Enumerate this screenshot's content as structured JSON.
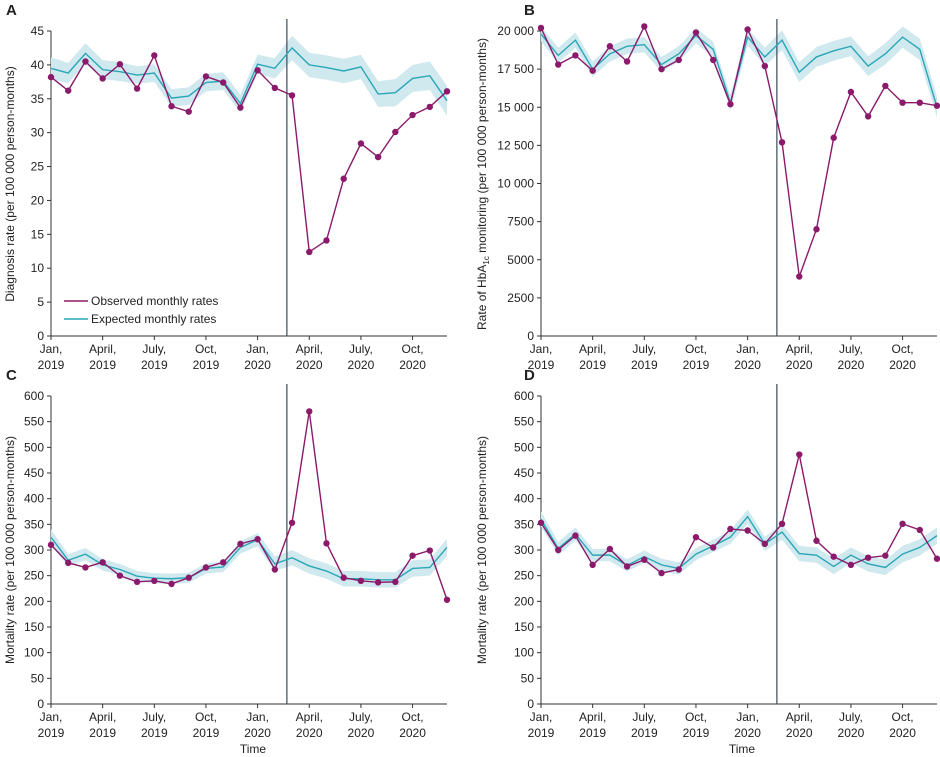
{
  "figure": {
    "x_axis_title": "Time",
    "legend": {
      "observed_label": "Observed monthly rates",
      "expected_label": "Expected monthly rates"
    },
    "colors": {
      "observed": "#8b1a6b",
      "expected": "#2aa6b7",
      "band": "#cfe9ef",
      "vline": "#3b4a5c"
    }
  },
  "chart_data": [
    {
      "panel": "A",
      "type": "line",
      "ylabel": "Diagnosis rate (per 100 000 person-months)",
      "ylim": [
        0,
        45
      ],
      "yticks": [
        0,
        5,
        10,
        15,
        20,
        25,
        30,
        35,
        40,
        45
      ],
      "x_tick_labels": [
        [
          "Jan,",
          "2019"
        ],
        [
          "April,",
          "2019"
        ],
        [
          "July,",
          "2019"
        ],
        [
          "Oct,",
          "2019"
        ],
        [
          "Jan,",
          "2020"
        ],
        [
          "April,",
          "2020"
        ],
        [
          "July,",
          "2020"
        ],
        [
          "Oct,",
          "2020"
        ]
      ],
      "x_tick_months": [
        0,
        3,
        6,
        9,
        12,
        15,
        18,
        21
      ],
      "vline_month": 13.7,
      "months": [
        0,
        1,
        2,
        3,
        4,
        5,
        6,
        7,
        8,
        9,
        10,
        11,
        12,
        13,
        14,
        15,
        16,
        17,
        18,
        19,
        20,
        21,
        22,
        23
      ],
      "series": [
        {
          "name": "Observed monthly rates",
          "values": [
            38.2,
            36.2,
            40.5,
            38.0,
            40.1,
            36.5,
            41.4,
            33.9,
            33.1,
            38.3,
            37.4,
            33.7,
            39.2,
            36.6,
            35.5,
            12.4,
            14.1,
            23.2,
            28.4,
            26.4,
            30.1,
            32.6,
            33.8,
            36.1
          ]
        },
        {
          "name": "Expected monthly rates",
          "values": [
            39.5,
            38.8,
            41.7,
            39.3,
            39.0,
            38.5,
            38.8,
            35.1,
            35.4,
            37.4,
            37.6,
            34.3,
            40.1,
            39.5,
            42.5,
            40.0,
            39.6,
            39.1,
            39.7,
            35.7,
            35.9,
            38.0,
            38.4,
            34.7
          ]
        }
      ],
      "band_halfwidth": [
        1.6,
        1.5,
        1.5,
        1.4,
        1.4,
        1.3,
        1.3,
        1.3,
        1.3,
        1.3,
        1.3,
        1.3,
        1.4,
        1.5,
        1.8,
        1.8,
        1.8,
        1.8,
        1.8,
        1.9,
        2.0,
        2.0,
        2.1,
        2.2
      ]
    },
    {
      "panel": "B",
      "type": "line",
      "ylabel": "Rate of HbA1c monitoring (per 100 000 person-months)",
      "ylim": [
        0,
        20000
      ],
      "yticks": [
        0,
        2500,
        5000,
        7500,
        10000,
        12500,
        15000,
        17500,
        20000
      ],
      "ytick_labels": [
        "0",
        "2500",
        "5000",
        "7500",
        "10 000",
        "12 500",
        "15 000",
        "17 500",
        "20 000"
      ],
      "x_tick_labels": [
        [
          "Jan,",
          "2019"
        ],
        [
          "April,",
          "2019"
        ],
        [
          "July,",
          "2019"
        ],
        [
          "Oct,",
          "2019"
        ],
        [
          "Jan,",
          "2020"
        ],
        [
          "April,",
          "2020"
        ],
        [
          "July,",
          "2020"
        ],
        [
          "Oct,",
          "2020"
        ]
      ],
      "x_tick_months": [
        0,
        3,
        6,
        9,
        12,
        15,
        18,
        21
      ],
      "vline_month": 13.7,
      "months": [
        0,
        1,
        2,
        3,
        4,
        5,
        6,
        7,
        8,
        9,
        10,
        11,
        12,
        13,
        14,
        15,
        16,
        17,
        18,
        19,
        20,
        21,
        22,
        23
      ],
      "series": [
        {
          "name": "Observed monthly rates",
          "values": [
            20200,
            17800,
            18400,
            17400,
            19000,
            18000,
            20300,
            17500,
            18100,
            19900,
            18100,
            15200,
            20100,
            17700,
            12700,
            3900,
            7000,
            13000,
            16000,
            14400,
            16400,
            15300,
            15300,
            15100
          ]
        },
        {
          "name": "Expected monthly rates",
          "values": [
            19800,
            18400,
            19400,
            17500,
            18500,
            19000,
            19100,
            17800,
            18500,
            19700,
            18800,
            15300,
            19600,
            18300,
            19400,
            17300,
            18300,
            18700,
            19000,
            17700,
            18500,
            19600,
            18800,
            15000
          ]
        }
      ],
      "band_halfwidth": [
        500,
        500,
        500,
        500,
        500,
        500,
        500,
        500,
        500,
        500,
        500,
        500,
        550,
        600,
        650,
        650,
        650,
        650,
        650,
        650,
        700,
        700,
        700,
        700
      ]
    },
    {
      "panel": "C",
      "type": "line",
      "ylabel": "Mortality rate (per 100 000 person-months)",
      "ylim": [
        0,
        600
      ],
      "yticks": [
        0,
        50,
        100,
        150,
        200,
        250,
        300,
        350,
        400,
        450,
        500,
        550,
        600
      ],
      "x_tick_labels": [
        [
          "Jan,",
          "2019"
        ],
        [
          "April,",
          "2019"
        ],
        [
          "July,",
          "2019"
        ],
        [
          "Oct,",
          "2019"
        ],
        [
          "Jan,",
          "2020"
        ],
        [
          "April,",
          "2020"
        ],
        [
          "July,",
          "2020"
        ],
        [
          "Oct,",
          "2020"
        ]
      ],
      "x_tick_months": [
        0,
        3,
        6,
        9,
        12,
        15,
        18,
        21
      ],
      "vline_month": 13.7,
      "months": [
        0,
        1,
        2,
        3,
        4,
        5,
        6,
        7,
        8,
        9,
        10,
        11,
        12,
        13,
        14,
        15,
        16,
        17,
        18,
        19,
        20,
        21,
        22,
        23
      ],
      "series": [
        {
          "name": "Observed monthly rates",
          "values": [
            310,
            275,
            266,
            276,
            250,
            238,
            240,
            234,
            246,
            266,
            276,
            312,
            321,
            262,
            353,
            570,
            313,
            246,
            240,
            237,
            238,
            289,
            299,
            203
          ]
        },
        {
          "name": "Expected monthly rates",
          "values": [
            325,
            280,
            292,
            271,
            262,
            249,
            245,
            244,
            246,
            264,
            267,
            305,
            320,
            273,
            285,
            269,
            259,
            244,
            244,
            242,
            242,
            264,
            266,
            305
          ]
        }
      ],
      "band_halfwidth": [
        15,
        12,
        12,
        11,
        11,
        10,
        10,
        10,
        10,
        10,
        10,
        12,
        13,
        14,
        15,
        15,
        15,
        15,
        15,
        15,
        15,
        16,
        16,
        17
      ]
    },
    {
      "panel": "D",
      "type": "line",
      "ylabel": "Mortality rate (per 100 000 person-months)",
      "ylim": [
        0,
        600
      ],
      "yticks": [
        0,
        50,
        100,
        150,
        200,
        250,
        300,
        350,
        400,
        450,
        500,
        550,
        600
      ],
      "x_tick_labels": [
        [
          "Jan,",
          "2019"
        ],
        [
          "April,",
          "2019"
        ],
        [
          "July,",
          "2019"
        ],
        [
          "Oct,",
          "2019"
        ],
        [
          "Jan,",
          "2020"
        ],
        [
          "April,",
          "2020"
        ],
        [
          "July,",
          "2020"
        ],
        [
          "Oct,",
          "2020"
        ]
      ],
      "x_tick_months": [
        0,
        3,
        6,
        9,
        12,
        15,
        18,
        21
      ],
      "vline_month": 13.7,
      "months": [
        0,
        1,
        2,
        3,
        4,
        5,
        6,
        7,
        8,
        9,
        10,
        11,
        12,
        13,
        14,
        15,
        16,
        17,
        18,
        19,
        20,
        21,
        22,
        23
      ],
      "series": [
        {
          "name": "Observed monthly rates",
          "values": [
            353,
            300,
            328,
            271,
            302,
            268,
            281,
            255,
            262,
            325,
            305,
            341,
            338,
            312,
            351,
            486,
            318,
            287,
            271,
            285,
            289,
            351,
            339,
            283
          ]
        },
        {
          "name": "Expected monthly rates",
          "values": [
            360,
            303,
            331,
            290,
            290,
            270,
            287,
            271,
            264,
            292,
            308,
            325,
            365,
            312,
            335,
            293,
            290,
            268,
            290,
            273,
            266,
            292,
            305,
            328
          ]
        }
      ],
      "band_halfwidth": [
        15,
        13,
        13,
        12,
        12,
        12,
        12,
        12,
        12,
        12,
        12,
        13,
        14,
        14,
        15,
        15,
        15,
        15,
        15,
        15,
        15,
        16,
        16,
        16
      ]
    }
  ]
}
